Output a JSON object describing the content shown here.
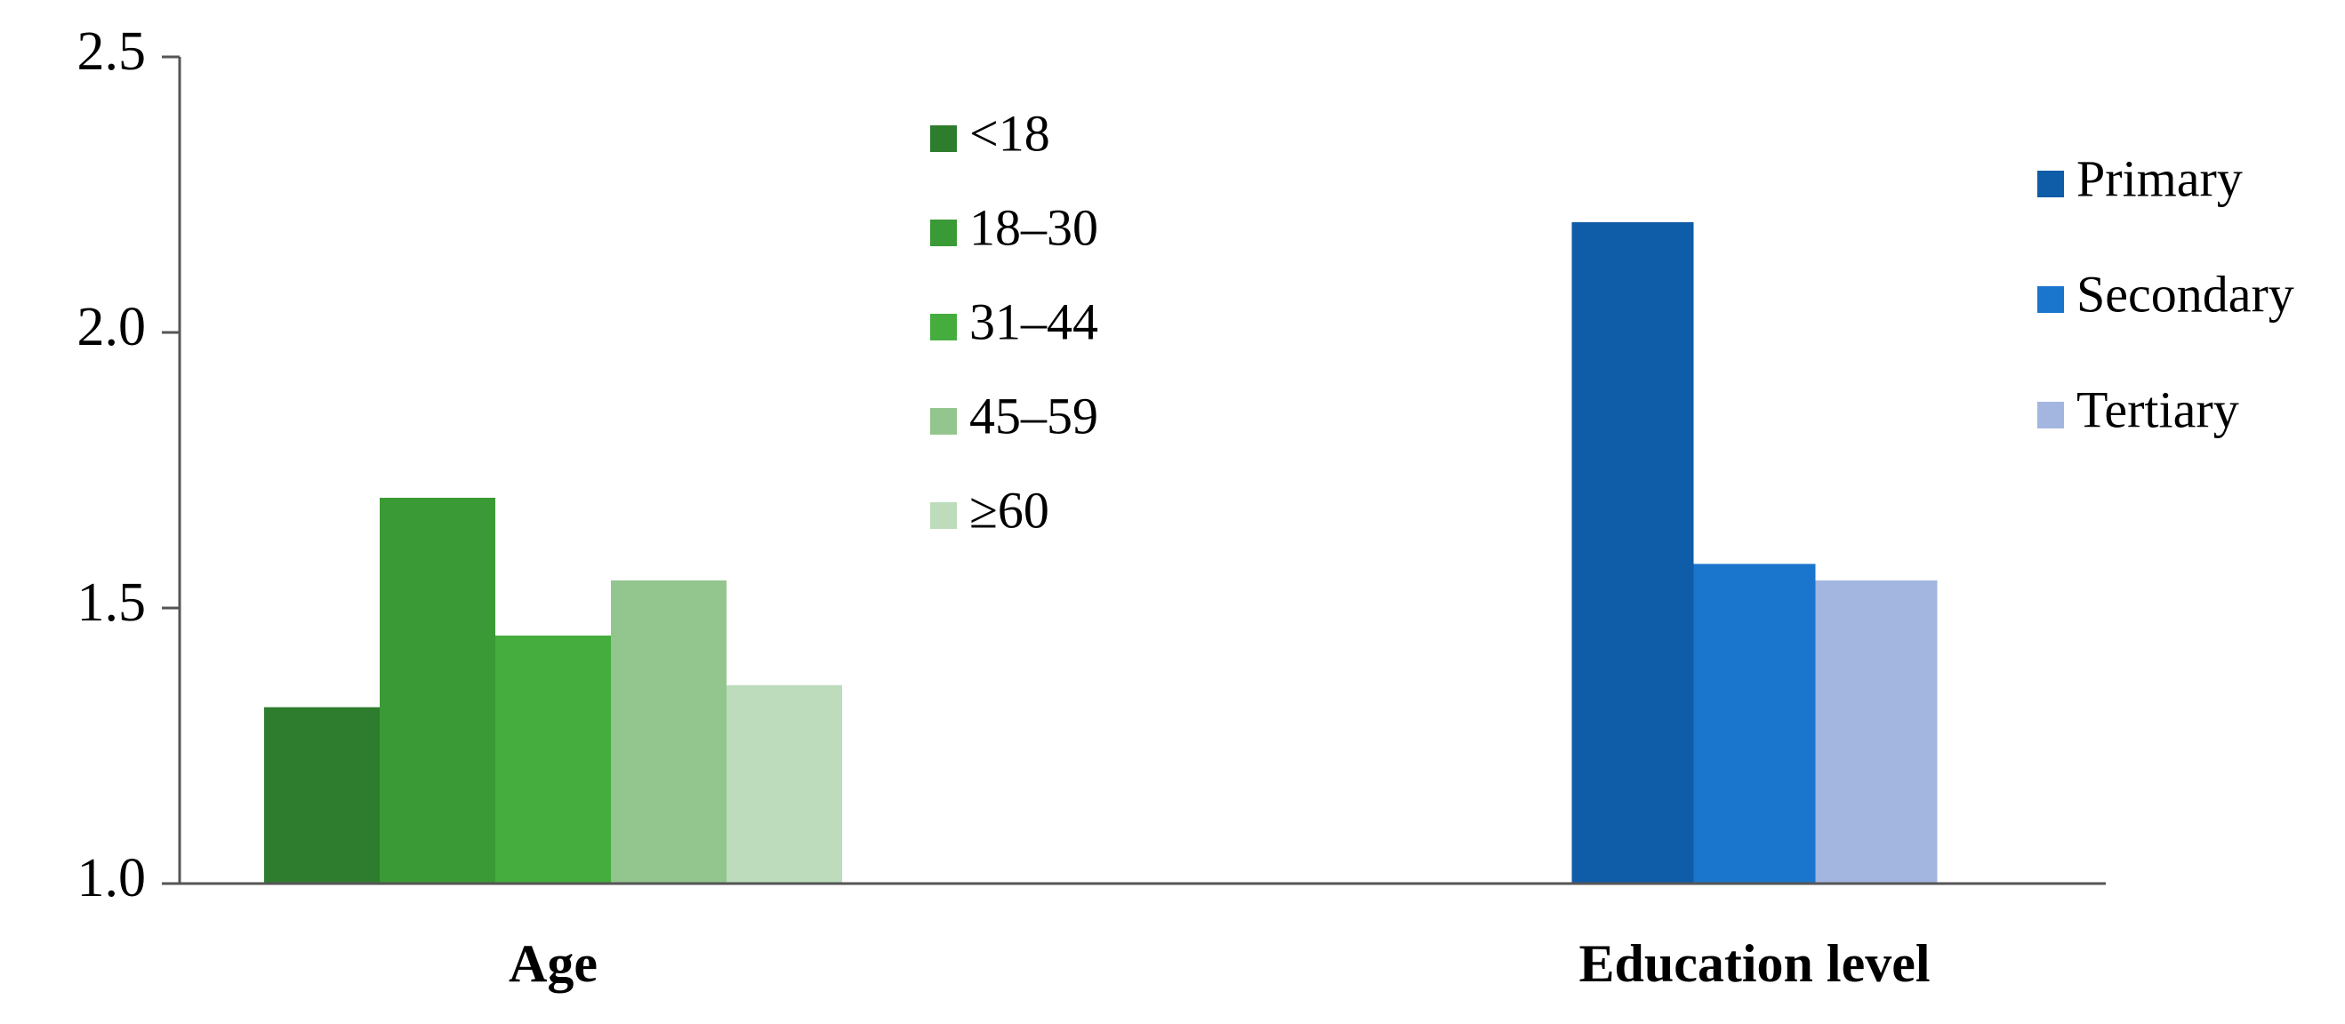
{
  "chart_data": {
    "type": "bar",
    "categories": [
      "Age",
      "Education level"
    ],
    "series": [
      {
        "name": "<18",
        "color": "#2e7d2e",
        "values": [
          1.32,
          null
        ]
      },
      {
        "name": "18–30",
        "color": "#3a9a35",
        "values": [
          1.7,
          null
        ]
      },
      {
        "name": "31–44",
        "color": "#45ad3e",
        "values": [
          1.45,
          null
        ]
      },
      {
        "name": "45–59",
        "color": "#92c68e",
        "values": [
          1.55,
          null
        ]
      },
      {
        "name": "≥60",
        "color": "#bcdcbc",
        "values": [
          1.36,
          null
        ]
      },
      {
        "name": "Primary",
        "color": "#0f5ca8",
        "values": [
          null,
          2.2
        ]
      },
      {
        "name": "Secondary",
        "color": "#1a75cc",
        "values": [
          null,
          1.58
        ]
      },
      {
        "name": "Tertiary",
        "color": "#a3b6df",
        "values": [
          null,
          1.55
        ]
      }
    ],
    "ylim": [
      1.0,
      2.5
    ],
    "yticks": [
      {
        "value": 1.0,
        "label": "1.0"
      },
      1.5,
      {
        "value": 2.0,
        "label": "2.0"
      },
      2.5
    ],
    "grid": false
  }
}
